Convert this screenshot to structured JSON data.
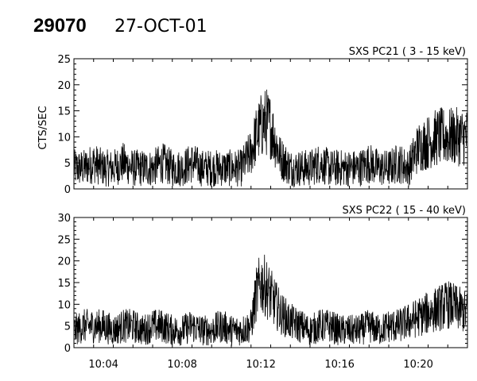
{
  "header": {
    "id": "29070",
    "date": "27-OCT-01"
  },
  "chart_data": [
    {
      "type": "line",
      "title": "SXS PC21  (  3 - 15 keV)",
      "ylabel": "CTS/SEC",
      "xlabel": "",
      "xlim": [
        "10:02:30",
        "10:22:30"
      ],
      "ylim": [
        0,
        25
      ],
      "yticks": [
        "0",
        "5",
        "10",
        "15",
        "20",
        "25"
      ],
      "xticks": [
        "10:04",
        "10:08",
        "10:12",
        "10:16",
        "10:20"
      ],
      "series": [
        {
          "x": [
            "10:02:30",
            "10:03:00",
            "10:03:30",
            "10:04:00",
            "10:04:30",
            "10:05:00",
            "10:05:30",
            "10:06:00",
            "10:06:30",
            "10:07:00",
            "10:07:30",
            "10:08:00",
            "10:08:30",
            "10:09:00",
            "10:09:30",
            "10:10:00",
            "10:10:30",
            "10:11:00",
            "10:11:30",
            "10:11:45",
            "10:12:00",
            "10:12:15",
            "10:12:30",
            "10:12:45",
            "10:13:00",
            "10:13:30",
            "10:14:00",
            "10:14:30",
            "10:15:00",
            "10:15:30",
            "10:16:00",
            "10:16:30",
            "10:17:00",
            "10:17:30",
            "10:18:00",
            "10:18:30",
            "10:19:00",
            "10:19:30",
            "10:20:00",
            "10:20:30",
            "10:21:00",
            "10:21:30",
            "10:22:00",
            "10:22:30"
          ],
          "values": [
            4,
            4,
            5,
            4,
            4,
            5,
            4,
            4,
            4,
            5,
            4,
            4,
            5,
            4,
            4,
            4,
            4,
            4,
            7,
            10,
            12,
            13,
            12,
            9,
            6,
            4,
            4,
            4,
            5,
            4,
            4,
            4,
            4,
            5,
            4,
            4,
            5,
            4,
            8,
            9,
            10,
            10,
            10,
            10
          ]
        }
      ]
    },
    {
      "type": "line",
      "title": "SXS PC22  ( 15 - 40 keV)",
      "ylabel": "",
      "xlabel": "",
      "xlim": [
        "10:02:30",
        "10:22:30"
      ],
      "ylim": [
        0,
        30
      ],
      "yticks": [
        "0",
        "5",
        "10",
        "15",
        "20",
        "25",
        "30"
      ],
      "xticks": [
        "10:04",
        "10:08",
        "10:12",
        "10:16",
        "10:20"
      ],
      "series": [
        {
          "x": [
            "10:02:30",
            "10:03:00",
            "10:03:30",
            "10:04:00",
            "10:04:30",
            "10:05:00",
            "10:05:30",
            "10:06:00",
            "10:06:30",
            "10:07:00",
            "10:07:30",
            "10:08:00",
            "10:08:30",
            "10:09:00",
            "10:09:30",
            "10:10:00",
            "10:10:30",
            "10:11:00",
            "10:11:30",
            "10:11:45",
            "10:12:00",
            "10:12:15",
            "10:12:30",
            "10:12:45",
            "10:13:00",
            "10:13:30",
            "10:14:00",
            "10:14:30",
            "10:15:00",
            "10:15:30",
            "10:16:00",
            "10:16:30",
            "10:17:00",
            "10:17:30",
            "10:18:00",
            "10:18:30",
            "10:19:00",
            "10:19:30",
            "10:20:00",
            "10:20:30",
            "10:21:00",
            "10:21:30",
            "10:22:00",
            "10:22:30"
          ],
          "values": [
            4,
            5,
            5,
            5,
            4,
            5,
            5,
            4,
            5,
            5,
            4,
            4,
            5,
            4,
            4,
            5,
            4,
            4,
            5,
            12,
            15,
            14,
            12,
            10,
            8,
            6,
            5,
            4,
            5,
            5,
            4,
            4,
            4,
            5,
            4,
            5,
            5,
            6,
            7,
            8,
            9,
            10,
            9,
            8
          ]
        }
      ]
    }
  ]
}
